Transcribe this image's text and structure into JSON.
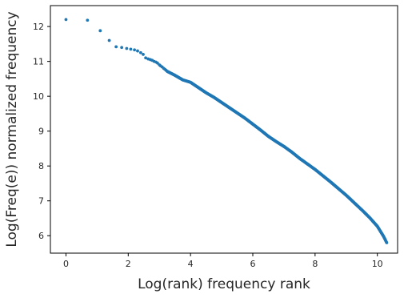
{
  "chart_data": {
    "type": "scatter",
    "title": "",
    "xlabel": "Log(rank) frequency rank",
    "ylabel": "Log(Freq(e)) normalized frequency",
    "xlim": [
      -0.5,
      10.65
    ],
    "ylim": [
      5.5,
      12.6
    ],
    "xticks": [
      0,
      2,
      4,
      6,
      8,
      10
    ],
    "yticks": [
      6,
      7,
      8,
      9,
      10,
      11,
      12
    ],
    "grid": false,
    "legend": "none",
    "color": "#1f77b4",
    "series": [
      {
        "x": [
          0.0,
          0.69,
          1.1,
          1.39,
          1.61,
          1.79,
          1.95,
          2.08,
          2.2,
          2.3,
          2.4,
          2.48,
          2.56,
          2.64,
          2.71,
          2.77,
          2.83,
          2.89,
          2.94,
          3.0,
          3.04,
          3.09,
          3.14,
          3.18,
          3.22,
          3.26,
          3.5,
          3.75,
          4.0,
          4.25,
          4.5,
          4.75,
          5.0,
          5.25,
          5.5,
          5.75,
          6.0,
          6.25,
          6.5,
          6.75,
          7.0,
          7.25,
          7.5,
          7.75,
          8.0,
          8.25,
          8.5,
          8.75,
          9.0,
          9.25,
          9.5,
          9.75,
          10.0,
          10.2,
          10.3
        ],
        "y": [
          12.2,
          12.18,
          11.88,
          11.6,
          11.42,
          11.4,
          11.37,
          11.35,
          11.33,
          11.3,
          11.25,
          11.2,
          11.1,
          11.07,
          11.05,
          11.03,
          11.0,
          10.98,
          10.95,
          10.9,
          10.87,
          10.84,
          10.8,
          10.77,
          10.74,
          10.71,
          10.6,
          10.47,
          10.4,
          10.25,
          10.1,
          9.97,
          9.82,
          9.67,
          9.52,
          9.37,
          9.2,
          9.03,
          8.85,
          8.7,
          8.56,
          8.4,
          8.22,
          8.06,
          7.9,
          7.72,
          7.54,
          7.35,
          7.16,
          6.95,
          6.74,
          6.52,
          6.27,
          5.98,
          5.8
        ]
      }
    ]
  }
}
